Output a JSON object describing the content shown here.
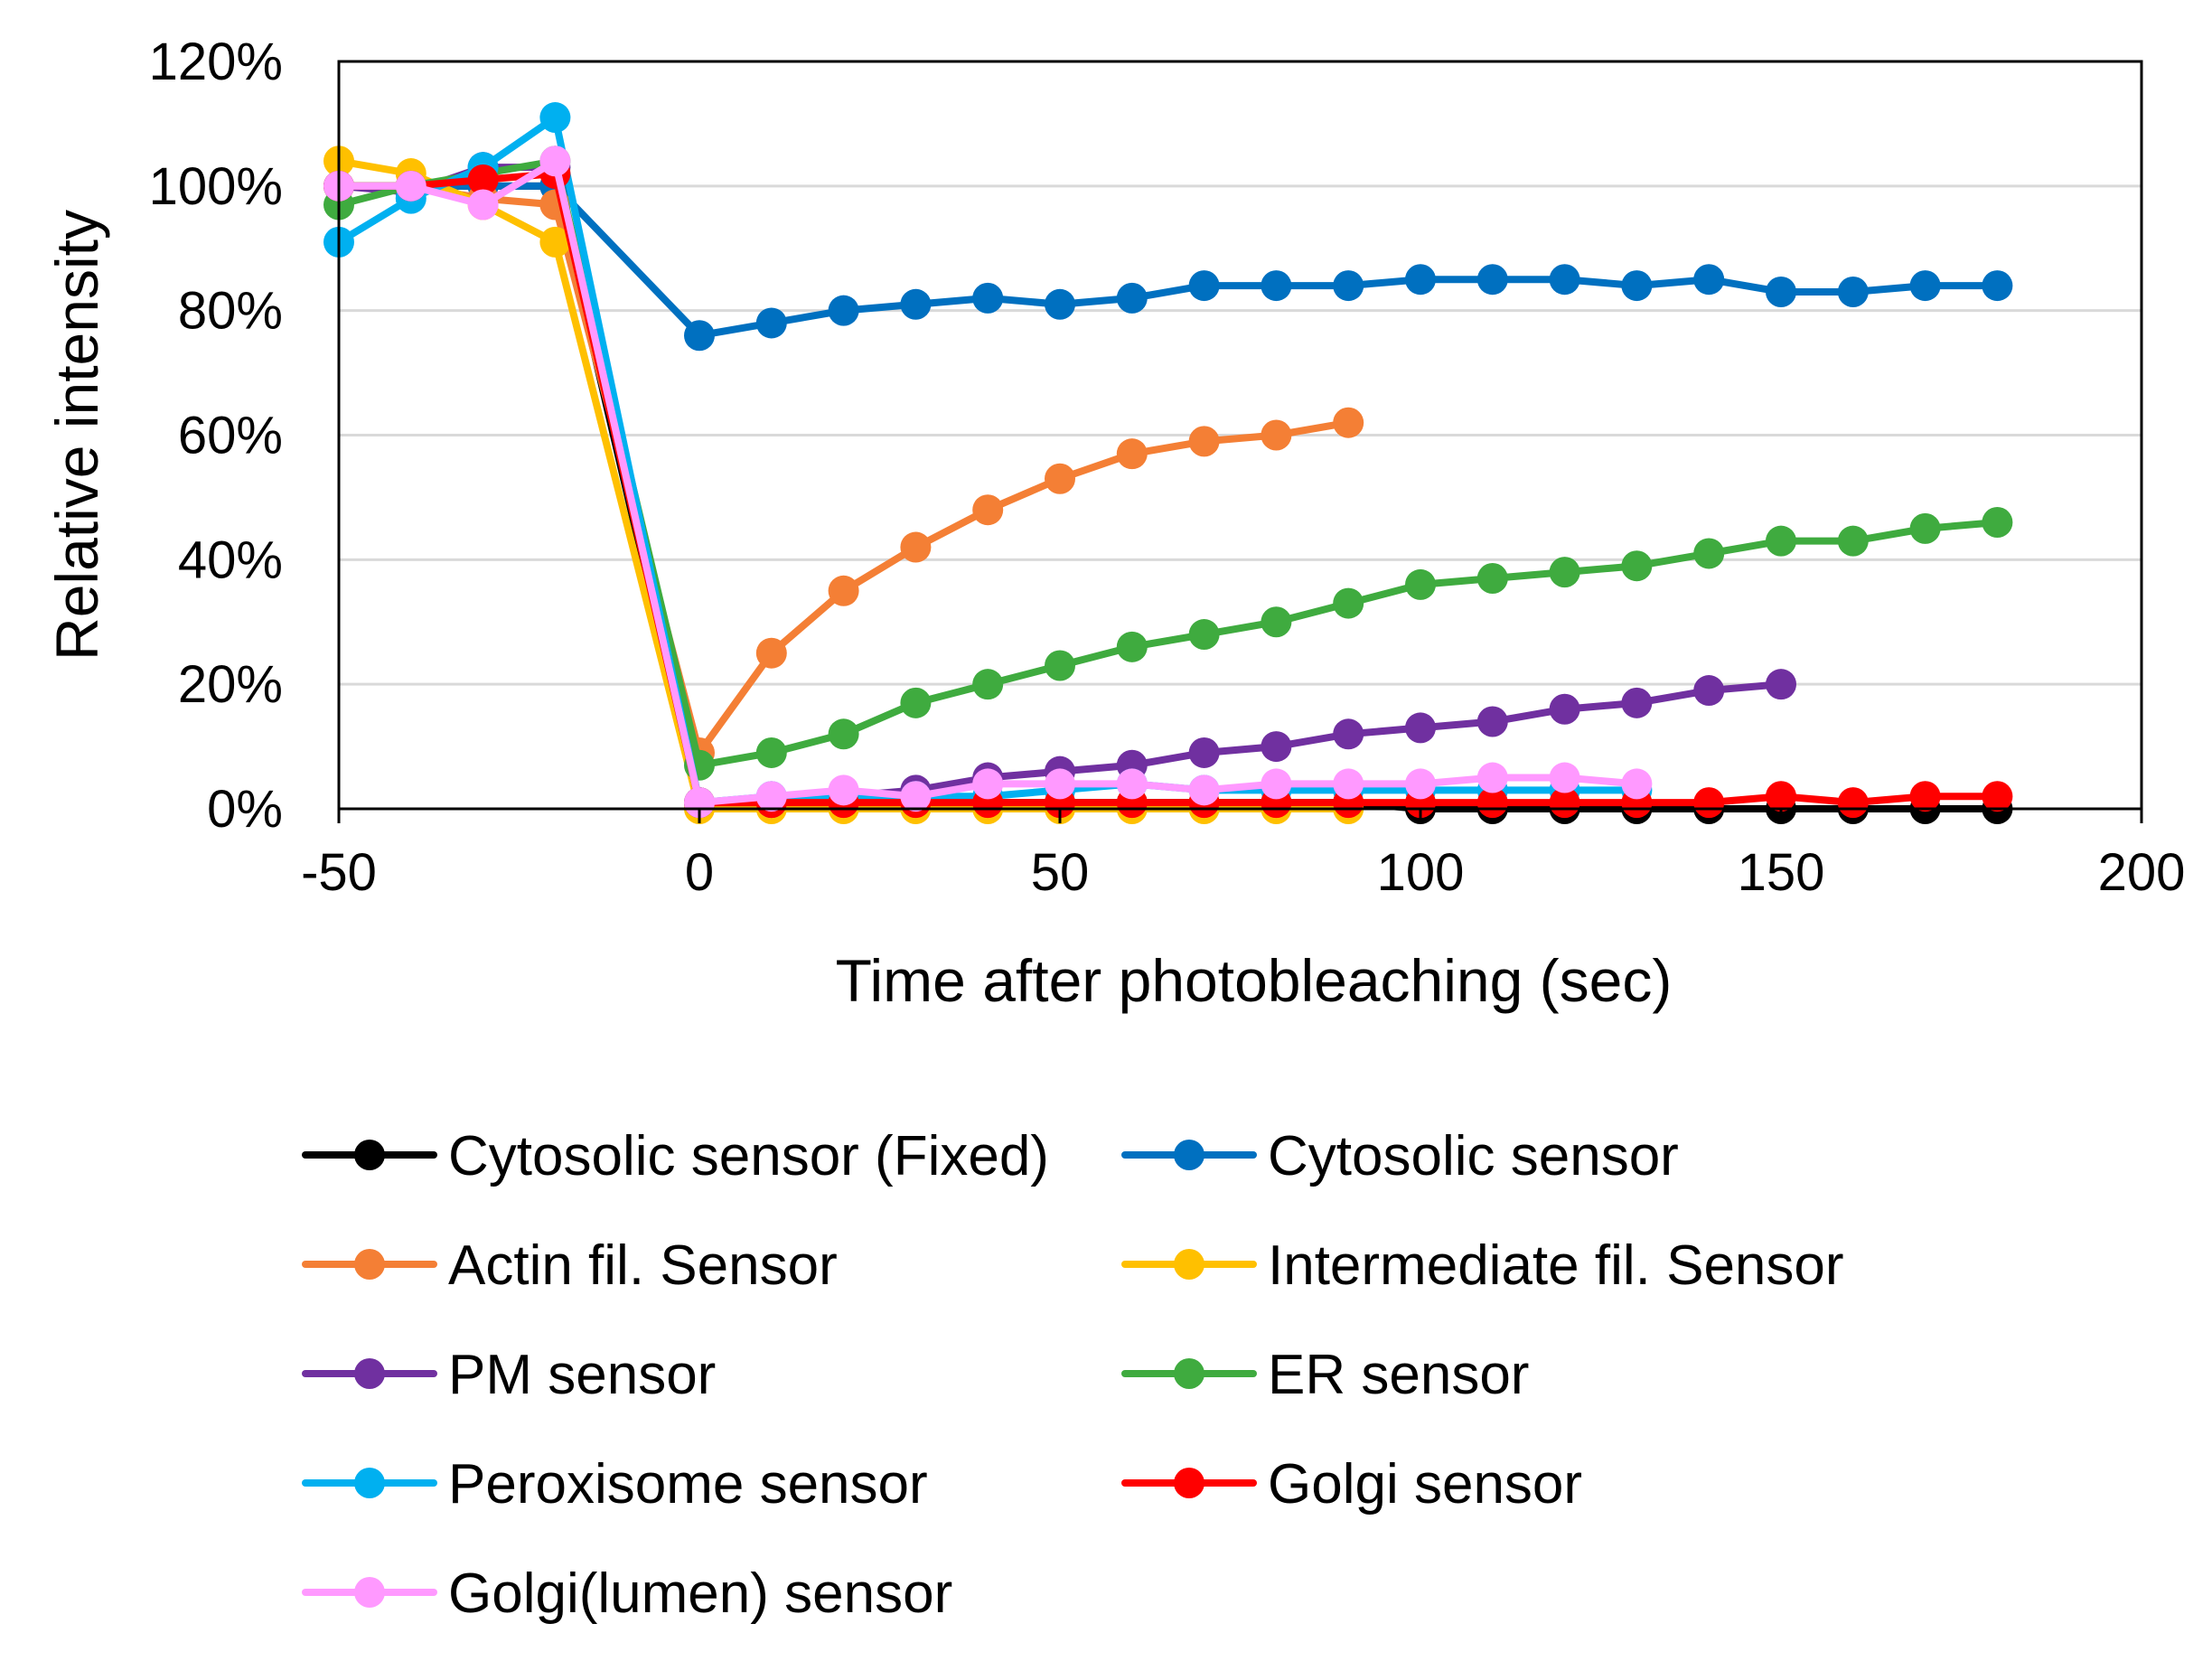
{
  "chart_data": {
    "type": "line",
    "title": "",
    "xlabel": "Time after photobleaching (sec)",
    "ylabel": "Relative intensity",
    "xlim": [
      -50,
      200
    ],
    "ylim": [
      0,
      1.2
    ],
    "x_ticks": [
      -50,
      0,
      50,
      100,
      150,
      200
    ],
    "x_tick_labels": [
      "-50",
      "0",
      "50",
      "100",
      "150",
      "200"
    ],
    "y_ticks": [
      0,
      0.2,
      0.4,
      0.6,
      0.8,
      1.0,
      1.2
    ],
    "y_tick_labels": [
      "0%",
      "20%",
      "40%",
      "60%",
      "80%",
      "100%",
      "120%"
    ],
    "grid": "horizontal",
    "legend_position": "bottom",
    "series": [
      {
        "name": "Cytosolic sensor (Fixed)",
        "color": "#000000",
        "x": [
          -50,
          -40,
          -30,
          -20,
          0,
          10,
          20,
          30,
          40,
          50,
          60,
          70,
          80,
          90,
          100,
          110,
          120,
          130,
          140,
          150,
          160,
          170,
          180
        ],
        "values": [
          1.0,
          1.0,
          1.0,
          1.0,
          0.01,
          0.01,
          0.01,
          0.01,
          0.01,
          0.01,
          0.01,
          0.01,
          0.01,
          0.01,
          0.0,
          0.0,
          0.0,
          0.0,
          0.0,
          0.0,
          0.0,
          0.0,
          0.0
        ]
      },
      {
        "name": "Cytosolic sensor",
        "color": "#0070C0",
        "x": [
          -50,
          -40,
          -30,
          -20,
          0,
          10,
          20,
          30,
          40,
          50,
          60,
          70,
          80,
          90,
          100,
          110,
          120,
          130,
          140,
          150,
          160,
          170,
          180
        ],
        "values": [
          1.0,
          1.0,
          1.0,
          1.0,
          0.76,
          0.78,
          0.8,
          0.81,
          0.82,
          0.81,
          0.82,
          0.84,
          0.84,
          0.84,
          0.85,
          0.85,
          0.85,
          0.84,
          0.85,
          0.83,
          0.83,
          0.84,
          0.84
        ]
      },
      {
        "name": "Actin fil. Sensor",
        "color": "#F47F35",
        "x": [
          -50,
          -40,
          -30,
          -20,
          0,
          10,
          20,
          30,
          40,
          50,
          60,
          70,
          80,
          90
        ],
        "values": [
          1.0,
          1.0,
          0.98,
          0.97,
          0.09,
          0.25,
          0.35,
          0.42,
          0.48,
          0.53,
          0.57,
          0.59,
          0.6,
          0.62
        ]
      },
      {
        "name": "Intermediate fil. Sensor",
        "color": "#FFC000",
        "x": [
          -50,
          -40,
          -30,
          -20,
          0,
          10,
          20,
          30,
          40,
          50,
          60,
          70,
          80,
          90
        ],
        "values": [
          1.04,
          1.02,
          0.97,
          0.91,
          0.0,
          0.0,
          0.0,
          0.0,
          0.0,
          0.0,
          0.0,
          0.0,
          0.0,
          0.0
        ]
      },
      {
        "name": "PM sensor",
        "color": "#7030A0",
        "x": [
          -50,
          -40,
          -30,
          -20,
          0,
          10,
          20,
          30,
          40,
          50,
          60,
          70,
          80,
          90,
          100,
          110,
          120,
          130,
          140,
          150
        ],
        "values": [
          1.0,
          0.99,
          1.03,
          1.03,
          0.01,
          0.01,
          0.02,
          0.03,
          0.05,
          0.06,
          0.07,
          0.09,
          0.1,
          0.12,
          0.13,
          0.14,
          0.16,
          0.17,
          0.19,
          0.2
        ]
      },
      {
        "name": "ER sensor",
        "color": "#3FAB3F",
        "x": [
          -50,
          -40,
          -30,
          -20,
          0,
          10,
          20,
          30,
          40,
          50,
          60,
          70,
          80,
          90,
          100,
          110,
          120,
          130,
          140,
          150,
          160,
          170,
          180
        ],
        "values": [
          0.97,
          1.0,
          1.02,
          1.04,
          0.07,
          0.09,
          0.12,
          0.17,
          0.2,
          0.23,
          0.26,
          0.28,
          0.3,
          0.33,
          0.36,
          0.37,
          0.38,
          0.39,
          0.41,
          0.43,
          0.43,
          0.45,
          0.46
        ]
      },
      {
        "name": "Peroxisome sensor",
        "color": "#00B0F0",
        "x": [
          -50,
          -40,
          -30,
          -20,
          0,
          10,
          20,
          30,
          40,
          50,
          60,
          70,
          80,
          90,
          100,
          110,
          120,
          130
        ],
        "values": [
          0.91,
          0.98,
          1.03,
          1.11,
          0.01,
          0.02,
          0.02,
          0.02,
          0.02,
          0.03,
          0.04,
          0.03,
          0.03,
          0.03,
          0.03,
          0.03,
          0.03,
          0.03
        ]
      },
      {
        "name": "Golgi sensor",
        "color": "#FF0000",
        "x": [
          -50,
          -40,
          -30,
          -20,
          0,
          10,
          20,
          30,
          40,
          50,
          60,
          70,
          80,
          90,
          100,
          110,
          120,
          130,
          140,
          150,
          160,
          170,
          180
        ],
        "values": [
          1.0,
          1.0,
          1.01,
          1.02,
          0.01,
          0.01,
          0.01,
          0.01,
          0.01,
          0.01,
          0.01,
          0.01,
          0.01,
          0.01,
          0.01,
          0.01,
          0.01,
          0.01,
          0.01,
          0.02,
          0.01,
          0.02,
          0.02
        ]
      },
      {
        "name": "Golgi(lumen) sensor",
        "color": "#FF99FF",
        "x": [
          -50,
          -40,
          -30,
          -20,
          0,
          10,
          20,
          30,
          40,
          50,
          60,
          70,
          80,
          90,
          100,
          110,
          120,
          130
        ],
        "values": [
          1.0,
          1.0,
          0.97,
          1.04,
          0.01,
          0.02,
          0.03,
          0.02,
          0.04,
          0.04,
          0.04,
          0.03,
          0.04,
          0.04,
          0.04,
          0.05,
          0.05,
          0.04
        ]
      }
    ]
  }
}
